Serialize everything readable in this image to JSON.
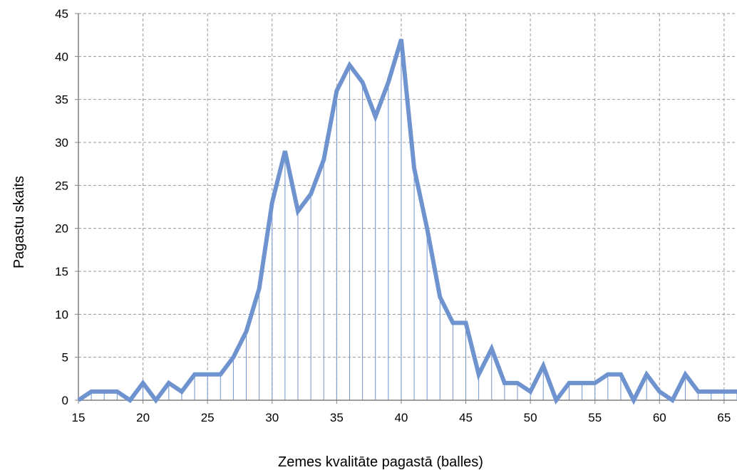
{
  "chart_data": {
    "type": "line",
    "title": "",
    "xlabel": "Zemes kvalitāte pagastā (balles)",
    "ylabel": "Pagastu skaits",
    "xlim": [
      15,
      66
    ],
    "ylim": [
      0,
      45
    ],
    "x_ticks": [
      15,
      20,
      25,
      30,
      35,
      40,
      45,
      50,
      55,
      60,
      65
    ],
    "y_ticks": [
      0,
      5,
      10,
      15,
      20,
      25,
      30,
      35,
      40,
      45
    ],
    "grid": true,
    "drop_lines": true,
    "series": [
      {
        "color": "#6f93cf",
        "x": [
          15,
          16,
          17,
          18,
          19,
          20,
          21,
          22,
          23,
          24,
          25,
          26,
          27,
          28,
          29,
          30,
          31,
          32,
          33,
          34,
          35,
          36,
          37,
          38,
          39,
          40,
          41,
          42,
          43,
          44,
          45,
          46,
          47,
          48,
          49,
          50,
          51,
          52,
          53,
          54,
          55,
          56,
          57,
          58,
          59,
          60,
          61,
          62,
          63,
          64,
          65,
          66
        ],
        "values": [
          0,
          1,
          1,
          1,
          0,
          2,
          0,
          2,
          1,
          3,
          3,
          3,
          5,
          8,
          13,
          23,
          29,
          22,
          24,
          28,
          36,
          39,
          37,
          33,
          37,
          42,
          27,
          20,
          12,
          9,
          9,
          3,
          6,
          2,
          2,
          1,
          4,
          0,
          2,
          2,
          2,
          3,
          3,
          0,
          3,
          1,
          0,
          3,
          1,
          1,
          1,
          1
        ]
      }
    ]
  }
}
